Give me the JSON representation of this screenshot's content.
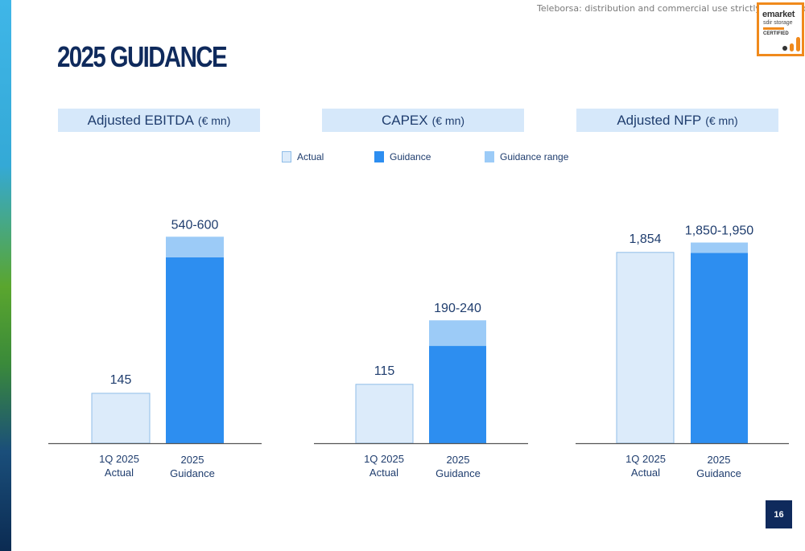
{
  "page": {
    "title": "2025 GUIDANCE",
    "disclaimer": "Teleborsa: distribution and commercial use strictly prohibited",
    "page_number": "16"
  },
  "badge": {
    "line1": "emarket",
    "line2": "sdir storage",
    "line3": "CERTIFIED"
  },
  "legend": [
    {
      "label": "Actual",
      "color": "#dcebfa"
    },
    {
      "label": "Guidance",
      "color": "#2d8ef0"
    },
    {
      "label": "Guidance range",
      "color": "#9ccbf7"
    }
  ],
  "colors": {
    "actual": "#dcebfa",
    "actual_border": "#8fbde8",
    "guidance": "#2d8ef0",
    "range": "#9ccbf7",
    "axis": "#555555"
  },
  "chart_data": [
    {
      "type": "bar",
      "title": "Adjusted EBITDA",
      "unit": "(€ mn)",
      "categories": [
        [
          "1Q 2025",
          "Actual"
        ],
        [
          "2025",
          "Guidance"
        ]
      ],
      "actual": {
        "value": 145,
        "label": "145"
      },
      "guidance": {
        "low": 540,
        "high": 600,
        "label": "540-600"
      },
      "ylim": [
        0,
        610
      ]
    },
    {
      "type": "bar",
      "title": "CAPEX",
      "unit": "(€ mn)",
      "categories": [
        [
          "1Q 2025",
          "Actual"
        ],
        [
          "2025",
          "Guidance"
        ]
      ],
      "actual": {
        "value": 115,
        "label": "115"
      },
      "guidance": {
        "low": 190,
        "high": 240,
        "label": "190-240"
      },
      "ylim": [
        0,
        410
      ]
    },
    {
      "type": "bar",
      "title": "Adjusted NFP",
      "unit": "(€ mn)",
      "categories": [
        [
          "1Q 2025",
          "Actual"
        ],
        [
          "2025",
          "Guidance"
        ]
      ],
      "actual": {
        "value": 1854,
        "label": "1,854"
      },
      "guidance": {
        "low": 1850,
        "high": 1950,
        "label": "1,850-1,950"
      },
      "ylim": [
        0,
        2040
      ]
    }
  ]
}
